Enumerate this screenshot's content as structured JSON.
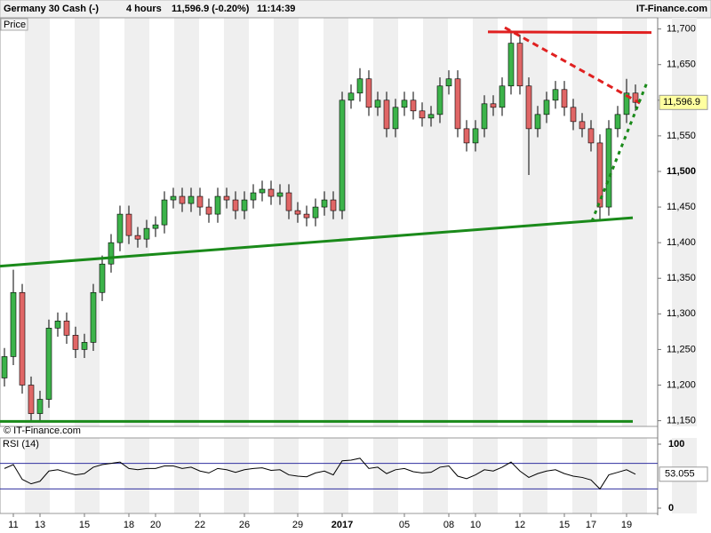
{
  "header": {
    "instrument": "Germany 30 Cash (-)",
    "timeframe": "4 hours",
    "last": "11,596.9 (-0.20%)",
    "time": "11:14:39",
    "brand": "IT-Finance.com"
  },
  "chart_data": [
    {
      "type": "candlestick",
      "panel_label": "Price",
      "watermark": "© IT-Finance.com",
      "up_color": "#3cb34a",
      "down_color": "#e06666",
      "categories": [
        null,
        "11",
        null,
        null,
        "13",
        null,
        null,
        null,
        null,
        "15",
        null,
        null,
        null,
        null,
        "18",
        null,
        null,
        "20",
        null,
        null,
        null,
        null,
        "22",
        null,
        null,
        null,
        null,
        "26",
        null,
        null,
        null,
        null,
        null,
        "29",
        null,
        null,
        null,
        null,
        "2017",
        null,
        null,
        null,
        null,
        null,
        null,
        "05",
        null,
        null,
        null,
        null,
        "08",
        null,
        null,
        "10",
        null,
        null,
        null,
        null,
        "12",
        null,
        null,
        null,
        null,
        "15",
        null,
        null,
        "17",
        null,
        null,
        null,
        "19",
        null
      ],
      "open": [
        11210,
        11240,
        11330,
        11200,
        11160,
        11180,
        11280,
        11290,
        11270,
        11250,
        11260,
        11330,
        11370,
        11400,
        11440,
        11410,
        11405,
        11420,
        11425,
        11460,
        11465,
        11455,
        11465,
        11450,
        11440,
        11465,
        11460,
        11445,
        11460,
        11470,
        11475,
        11465,
        11470,
        11445,
        11440,
        11435,
        11450,
        11460,
        11445,
        11600,
        11610,
        11630,
        11590,
        11600,
        11560,
        11590,
        11600,
        11585,
        11575,
        11580,
        11620,
        11630,
        11560,
        11540,
        11560,
        11595,
        11590,
        11620,
        11680,
        11620,
        11560,
        11580,
        11600,
        11615,
        11590,
        11570,
        11560,
        11540,
        11450,
        11560,
        11580,
        11610
      ],
      "high": [
        11252,
        11362,
        11342,
        11212,
        11192,
        11292,
        11302,
        11302,
        11282,
        11272,
        11342,
        11382,
        11412,
        11452,
        11452,
        11422,
        11432,
        11437,
        11472,
        11477,
        11477,
        11477,
        11477,
        11462,
        11477,
        11477,
        11472,
        11472,
        11482,
        11487,
        11487,
        11482,
        11482,
        11457,
        11452,
        11462,
        11472,
        11472,
        11612,
        11622,
        11645,
        11642,
        11612,
        11612,
        11602,
        11612,
        11612,
        11597,
        11592,
        11632,
        11642,
        11642,
        11572,
        11572,
        11607,
        11607,
        11632,
        11698,
        11692,
        11632,
        11592,
        11612,
        11627,
        11627,
        11602,
        11582,
        11572,
        11552,
        11572,
        11592,
        11630,
        11622
      ],
      "low": [
        11198,
        11228,
        11188,
        11148,
        11148,
        11168,
        11268,
        11258,
        11238,
        11238,
        11248,
        11318,
        11358,
        11388,
        11398,
        11393,
        11393,
        11408,
        11413,
        11448,
        11443,
        11443,
        11438,
        11428,
        11428,
        11448,
        11433,
        11433,
        11448,
        11458,
        11453,
        11453,
        11433,
        11428,
        11423,
        11423,
        11438,
        11433,
        11433,
        11588,
        11598,
        11578,
        11578,
        11548,
        11548,
        11578,
        11573,
        11563,
        11563,
        11568,
        11608,
        11548,
        11528,
        11528,
        11548,
        11578,
        11578,
        11608,
        11608,
        11495,
        11548,
        11568,
        11588,
        11578,
        11558,
        11548,
        11528,
        11430,
        11438,
        11548,
        11568,
        11585
      ],
      "close": [
        11240,
        11330,
        11200,
        11160,
        11180,
        11280,
        11290,
        11270,
        11250,
        11260,
        11330,
        11370,
        11400,
        11440,
        11410,
        11405,
        11420,
        11425,
        11460,
        11465,
        11455,
        11465,
        11450,
        11440,
        11465,
        11460,
        11445,
        11460,
        11470,
        11475,
        11465,
        11470,
        11445,
        11440,
        11435,
        11450,
        11460,
        11445,
        11600,
        11610,
        11630,
        11590,
        11600,
        11560,
        11590,
        11600,
        11585,
        11575,
        11580,
        11620,
        11630,
        11560,
        11540,
        11560,
        11595,
        11590,
        11620,
        11680,
        11620,
        11560,
        11580,
        11600,
        11615,
        11590,
        11570,
        11560,
        11540,
        11450,
        11560,
        11580,
        11610,
        11597
      ],
      "last_label": "11,596.9",
      "last_value": 11596.9,
      "xlim": [
        -0.5,
        73.5
      ],
      "ylim": [
        11142,
        11722
      ],
      "yticks": [
        {
          "value": 11150,
          "label": "11,150"
        },
        {
          "value": 11200,
          "label": "11,200"
        },
        {
          "value": 11250,
          "label": "11,250"
        },
        {
          "value": 11300,
          "label": "11,300"
        },
        {
          "value": 11350,
          "label": "11,350"
        },
        {
          "value": 11400,
          "label": "11,400"
        },
        {
          "value": 11450,
          "label": "11,450"
        },
        {
          "value": 11500,
          "label": "11,500"
        },
        {
          "value": 11550,
          "label": "11,550"
        },
        {
          "value": 11600,
          "label": "11,600"
        },
        {
          "value": 11650,
          "label": "11,650"
        },
        {
          "value": 11700,
          "label": "11,700"
        }
      ],
      "lines": [
        {
          "color": "#e02020",
          "style": "solid",
          "x": [
            54.4,
            72.8
          ],
          "y": [
            11696,
            11695
          ]
        },
        {
          "color": "#e02020",
          "style": "dashed",
          "x": [
            56.3,
            71.5
          ],
          "y": [
            11702,
            11596
          ]
        },
        {
          "color": "#1a8a1a",
          "style": "solid",
          "x": [
            -0.5,
            70.7
          ],
          "y": [
            11367,
            11435
          ]
        },
        {
          "color": "#1a8a1a",
          "style": "solid",
          "x": [
            -0.5,
            70.7
          ],
          "y": [
            11149,
            11149
          ]
        },
        {
          "color": "#1a8a1a",
          "style": "dotted",
          "x": [
            66.1,
            72.3
          ],
          "y": [
            11430,
            11625
          ]
        }
      ]
    },
    {
      "type": "line",
      "panel_label": "RSI (14)",
      "color": "#000000",
      "values": [
        62,
        68,
        45,
        38,
        42,
        58,
        60,
        56,
        52,
        54,
        64,
        68,
        70,
        72,
        62,
        60,
        62,
        62,
        66,
        66,
        62,
        64,
        58,
        55,
        62,
        60,
        56,
        60,
        62,
        63,
        59,
        60,
        52,
        50,
        49,
        55,
        58,
        52,
        74,
        75,
        78,
        62,
        64,
        54,
        60,
        62,
        57,
        55,
        56,
        64,
        66,
        50,
        46,
        52,
        60,
        58,
        64,
        72,
        58,
        48,
        54,
        58,
        60,
        54,
        50,
        48,
        44,
        30,
        52,
        56,
        60,
        53.055
      ],
      "last_label": "53.055",
      "ylim": [
        0,
        100
      ],
      "yticks": [
        0,
        100
      ],
      "levels": [
        30,
        70
      ],
      "level_color": "#3030a0"
    }
  ]
}
